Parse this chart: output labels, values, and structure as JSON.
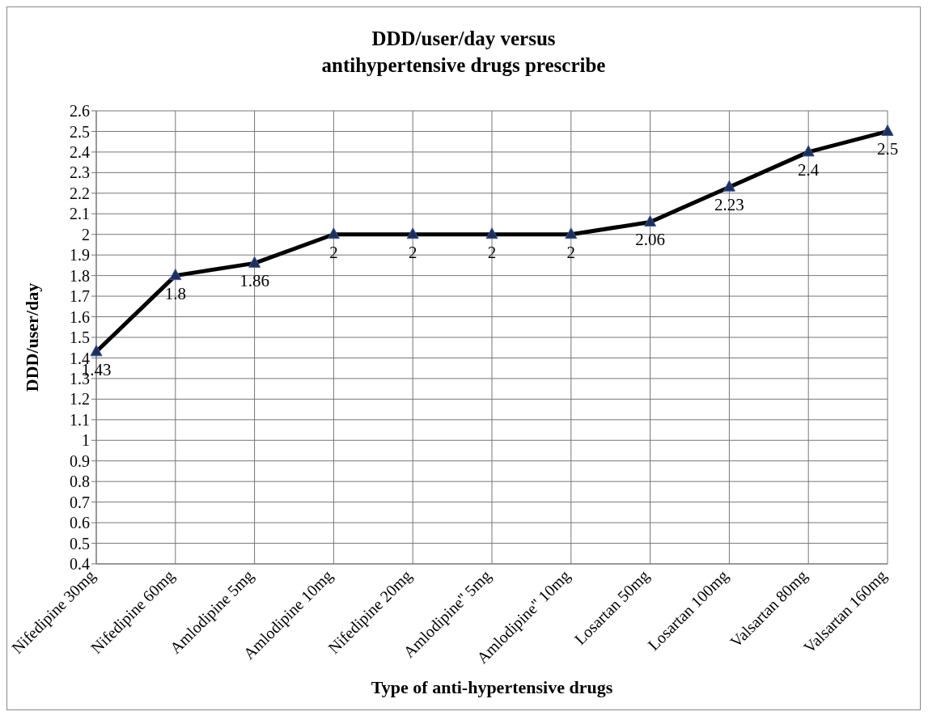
{
  "chart_data": {
    "type": "line",
    "title": "DDD/user/day versus\nantihypertensive drugs prescribe",
    "xlabel": "Type of anti-hypertensive drugs",
    "ylabel": "DDD/user/day",
    "categories": [
      "Nifedipine 30mg",
      "Nifedipine 60mg",
      "Amlodipine 5mg",
      "Amlodipine 10mg",
      "Nifedipine 20mg",
      "Amlodipine'' 5mg",
      "Amlodipine'' 10mg",
      "Losartan 50mg",
      "Losartan 100mg",
      "Valsartan 80mg",
      "Valsartan 160mg"
    ],
    "series": [
      {
        "color": "#000000",
        "values": [
          1.43,
          1.8,
          1.86,
          2,
          2,
          2,
          2,
          2.06,
          2.23,
          2.4,
          2.5
        ]
      }
    ],
    "ylim": [
      0.4,
      2.6
    ],
    "yticks": [
      0.4,
      0.5,
      0.6,
      0.7,
      0.8,
      0.9,
      1,
      1.1,
      1.2,
      1.3,
      1.4,
      1.5,
      1.6,
      1.7,
      1.8,
      1.9,
      2,
      2.1,
      2.2,
      2.3,
      2.4,
      2.5,
      2.6
    ],
    "grid": true,
    "marker": "triangle",
    "line_style": "solid",
    "data_labels": true
  }
}
